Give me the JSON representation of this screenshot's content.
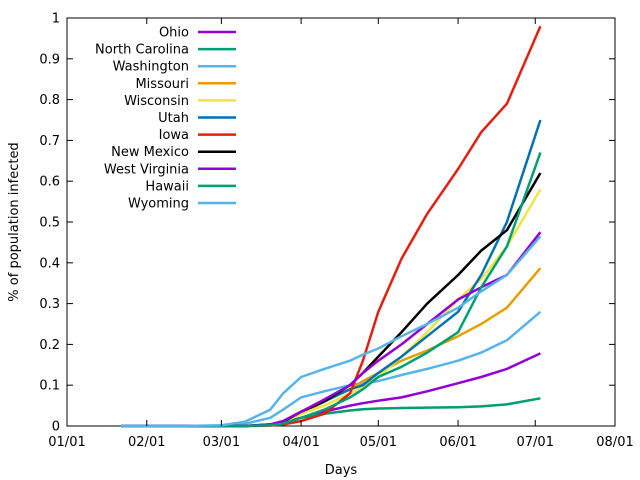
{
  "chart_data": {
    "type": "line",
    "xlabel": "Days",
    "ylabel": "% of population infected",
    "x_ticks": [
      "01/01",
      "02/01",
      "03/01",
      "04/01",
      "05/01",
      "06/01",
      "07/01",
      "08/01"
    ],
    "y_ticks": [
      "0",
      "0.1",
      "0.2",
      "0.3",
      "0.4",
      "0.5",
      "0.6",
      "0.7",
      "0.8",
      "0.9",
      "1"
    ],
    "xlim": [
      "01/01",
      "08/01"
    ],
    "ylim": [
      0,
      1
    ],
    "grid": false,
    "legend_position": "top-left",
    "x": [
      "01/22",
      "02/01",
      "02/15",
      "03/01",
      "03/10",
      "03/20",
      "03/25",
      "04/01",
      "04/10",
      "04/20",
      "04/25",
      "05/01",
      "05/10",
      "05/20",
      "06/01",
      "06/10",
      "06/20",
      "07/03"
    ],
    "series": [
      {
        "name": "Ohio",
        "color": "#9400d3",
        "values": [
          0,
          0,
          0,
          0,
          0,
          0.003,
          0.008,
          0.02,
          0.035,
          0.05,
          0.056,
          0.062,
          0.07,
          0.085,
          0.105,
          0.12,
          0.14,
          0.178
        ]
      },
      {
        "name": "North Carolina",
        "color": "#009e73",
        "values": [
          0,
          0,
          0,
          0,
          0,
          0.003,
          0.008,
          0.02,
          0.03,
          0.038,
          0.041,
          0.043,
          0.044,
          0.045,
          0.046,
          0.048,
          0.053,
          0.068
        ]
      },
      {
        "name": "Washington",
        "color": "#56b4e9",
        "values": [
          0,
          0,
          0,
          0,
          0.005,
          0.02,
          0.04,
          0.07,
          0.085,
          0.1,
          0.105,
          0.11,
          0.125,
          0.14,
          0.16,
          0.18,
          0.21,
          0.28
        ]
      },
      {
        "name": "Missouri",
        "color": "#e69f00",
        "values": [
          0,
          0,
          0,
          0,
          0,
          0.003,
          0.01,
          0.03,
          0.06,
          0.09,
          0.11,
          0.13,
          0.16,
          0.185,
          0.22,
          0.25,
          0.29,
          0.387
        ]
      },
      {
        "name": "Wisconsin",
        "color": "#f0e442",
        "values": [
          0,
          0,
          0,
          0,
          0,
          0.003,
          0.01,
          0.03,
          0.05,
          0.08,
          0.095,
          0.12,
          0.17,
          0.23,
          0.31,
          0.36,
          0.44,
          0.58
        ]
      },
      {
        "name": "Utah",
        "color": "#0072b2",
        "values": [
          0,
          0,
          0,
          0,
          0,
          0.004,
          0.012,
          0.035,
          0.06,
          0.09,
          0.1,
          0.13,
          0.17,
          0.22,
          0.28,
          0.37,
          0.5,
          0.75
        ]
      },
      {
        "name": "Iowa",
        "color": "#e51e10",
        "values": [
          0,
          0,
          0,
          0,
          0,
          0.001,
          0.004,
          0.012,
          0.03,
          0.08,
          0.16,
          0.28,
          0.41,
          0.52,
          0.63,
          0.72,
          0.79,
          0.98
        ]
      },
      {
        "name": "New Mexico",
        "color": "#000000",
        "values": [
          0,
          0,
          0,
          0,
          0,
          0.003,
          0.01,
          0.035,
          0.06,
          0.1,
          0.13,
          0.17,
          0.23,
          0.3,
          0.37,
          0.43,
          0.48,
          0.62
        ]
      },
      {
        "name": "West Virginia",
        "color": "#9400d3",
        "values": [
          0,
          0,
          0,
          0,
          0,
          0.004,
          0.012,
          0.035,
          0.065,
          0.1,
          0.13,
          0.16,
          0.2,
          0.25,
          0.31,
          0.34,
          0.37,
          0.475
        ]
      },
      {
        "name": "Hawaii",
        "color": "#009e73",
        "values": [
          0,
          0,
          0,
          0,
          0,
          0.002,
          0.006,
          0.02,
          0.04,
          0.07,
          0.09,
          0.12,
          0.145,
          0.18,
          0.23,
          0.34,
          0.44,
          0.67
        ]
      },
      {
        "name": "Wyoming",
        "color": "#56b4e9",
        "values": [
          0,
          0,
          0,
          0.002,
          0.01,
          0.04,
          0.08,
          0.12,
          0.14,
          0.16,
          0.175,
          0.19,
          0.22,
          0.25,
          0.29,
          0.33,
          0.37,
          0.465
        ]
      }
    ]
  }
}
